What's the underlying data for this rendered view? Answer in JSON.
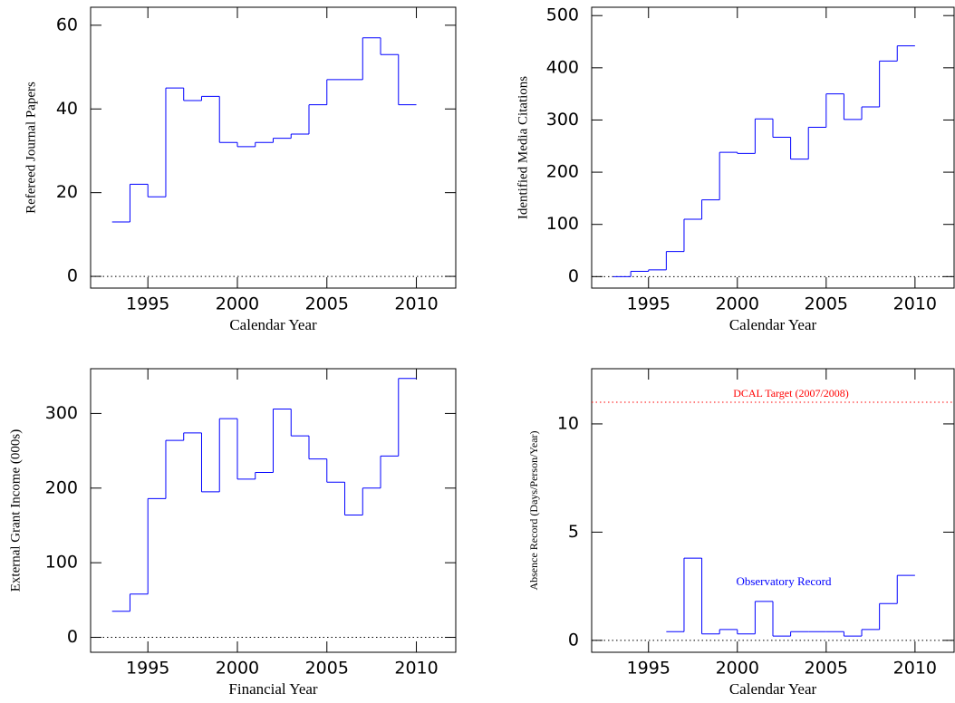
{
  "chart_data": [
    {
      "type": "histogram",
      "xlabel": "Calendar Year",
      "ylabel": "Refereed Journal Papers",
      "bins": [
        1993,
        1994,
        1995,
        1996,
        1997,
        1998,
        1999,
        2000,
        2001,
        2002,
        2003,
        2004,
        2005,
        2006,
        2007,
        2008,
        2009,
        2010
      ],
      "values": [
        13,
        22,
        19,
        45,
        42,
        43,
        32,
        31,
        32,
        33,
        34,
        41,
        47,
        47,
        57,
        53,
        41
      ],
      "color": "#0000ff",
      "xlim": [
        1991.8,
        2012.2
      ],
      "xticks": [
        1995,
        2000,
        2005,
        2010
      ],
      "ylim": [
        -2.8,
        64.3
      ],
      "yticks": [
        0,
        20,
        40,
        60
      ],
      "hlines": [
        {
          "value": 0,
          "color": "#000000"
        }
      ]
    },
    {
      "type": "histogram",
      "xlabel": "Calendar Year",
      "ylabel": "Identified Media Citations",
      "bins": [
        1993,
        1994,
        1995,
        1996,
        1997,
        1998,
        1999,
        2000,
        2001,
        2002,
        2003,
        2004,
        2005,
        2006,
        2007,
        2008,
        2009,
        2010
      ],
      "values": [
        0,
        10,
        13,
        48,
        110,
        147,
        238,
        236,
        302,
        267,
        225,
        286,
        350,
        301,
        325,
        413,
        442
      ],
      "color": "#0000ff",
      "xlim": [
        1991.8,
        2012.2
      ],
      "xticks": [
        1995,
        2000,
        2005,
        2010
      ],
      "ylim": [
        -22,
        516
      ],
      "yticks": [
        0,
        100,
        200,
        300,
        400,
        500
      ],
      "hlines": [
        {
          "value": 0,
          "color": "#000000"
        }
      ]
    },
    {
      "type": "histogram",
      "xlabel": "Financial Year",
      "ylabel": "External Grant Income (000s)",
      "bins": [
        1993,
        1994,
        1995,
        1996,
        1997,
        1998,
        1999,
        2000,
        2001,
        2002,
        2003,
        2004,
        2005,
        2006,
        2007,
        2008,
        2009,
        2010
      ],
      "values": [
        35,
        58,
        186,
        264,
        274,
        195,
        293,
        212,
        221,
        306,
        270,
        239,
        208,
        164,
        200,
        243,
        347
      ],
      "color": "#0000ff",
      "xlim": [
        1991.8,
        2012.2
      ],
      "xticks": [
        1995,
        2000,
        2005,
        2010
      ],
      "ylim": [
        -20,
        360
      ],
      "yticks": [
        0,
        100,
        200,
        300
      ],
      "hlines": [
        {
          "value": 0,
          "color": "#000000"
        }
      ]
    },
    {
      "type": "histogram",
      "xlabel": "Calendar Year",
      "ylabel": "Absence Record (Days/Person/Year)",
      "bins": [
        1996,
        1997,
        1998,
        1999,
        2000,
        2001,
        2002,
        2003,
        2004,
        2005,
        2006,
        2007,
        2008,
        2009,
        2010
      ],
      "values": [
        0.4,
        3.8,
        0.3,
        0.5,
        0.3,
        1.8,
        0.2,
        0.4,
        0.4,
        0.4,
        0.2,
        0.5,
        1.7,
        3.0
      ],
      "color": "#0000ff",
      "xlim": [
        1991.8,
        2012.2
      ],
      "xticks": [
        1995,
        2000,
        2005,
        2010
      ],
      "ylim": [
        -0.55,
        12.55
      ],
      "yticks": [
        0,
        5,
        10
      ],
      "hlines": [
        {
          "value": 0,
          "color": "#000000"
        },
        {
          "value": 11,
          "color": "#ff0000",
          "label": "DCAL Target (2007/2008)"
        }
      ],
      "annotation": "Observatory Record"
    }
  ]
}
